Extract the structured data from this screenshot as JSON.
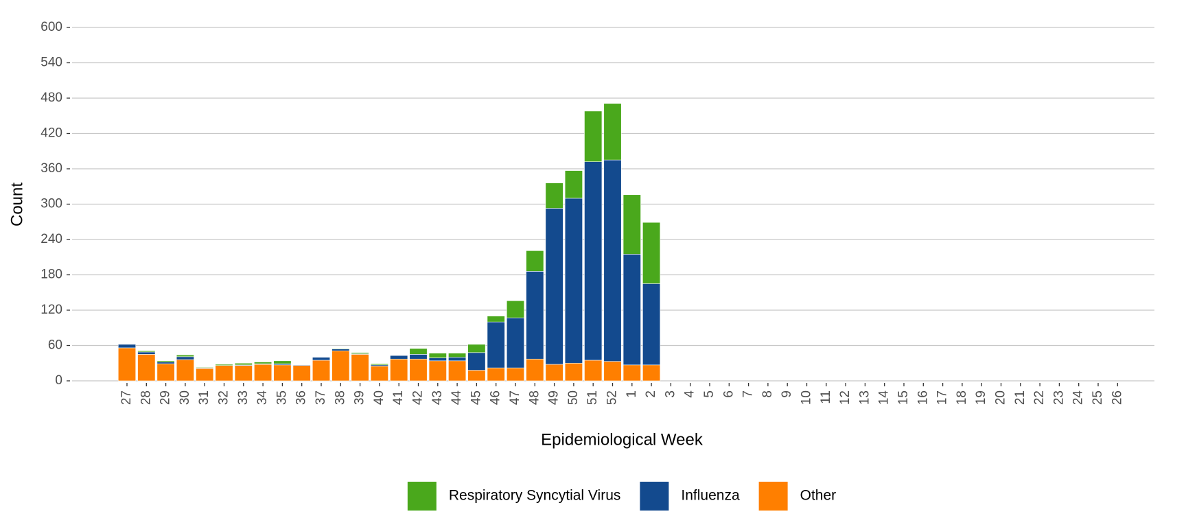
{
  "chart_data": {
    "type": "bar",
    "stacked": true,
    "x_label": "Epidemiological Week",
    "y_label": "Count",
    "categories": [
      "27",
      "28",
      "29",
      "30",
      "31",
      "32",
      "33",
      "34",
      "35",
      "36",
      "37",
      "38",
      "39",
      "40",
      "41",
      "42",
      "43",
      "44",
      "45",
      "46",
      "47",
      "48",
      "49",
      "50",
      "51",
      "52",
      "1",
      "2",
      "3",
      "4",
      "5",
      "6",
      "7",
      "8",
      "9",
      "10",
      "11",
      "12",
      "13",
      "14",
      "15",
      "16",
      "17",
      "18",
      "19",
      "20",
      "21",
      "22",
      "23",
      "24",
      "25",
      "26"
    ],
    "series": [
      {
        "name": "Respiratory Syncytial Virus",
        "color": "#4aa81c",
        "values": [
          0,
          2,
          2,
          3,
          1,
          2,
          3,
          3,
          5,
          0,
          0,
          1,
          2,
          2,
          0,
          10,
          8,
          7,
          14,
          10,
          29,
          35,
          43,
          47,
          86,
          96,
          101,
          104,
          null,
          null,
          null,
          null,
          null,
          null,
          null,
          null,
          null,
          null,
          null,
          null,
          null,
          null,
          null,
          null,
          null,
          null,
          null,
          null,
          null,
          null,
          null,
          null
        ]
      },
      {
        "name": "Influenza",
        "color": "#134a8e",
        "values": [
          6,
          4,
          3,
          5,
          1,
          0,
          1,
          1,
          2,
          1,
          5,
          3,
          1,
          2,
          6,
          8,
          5,
          6,
          30,
          78,
          85,
          149,
          265,
          280,
          337,
          342,
          188,
          138,
          null,
          null,
          null,
          null,
          null,
          null,
          null,
          null,
          null,
          null,
          null,
          null,
          null,
          null,
          null,
          null,
          null,
          null,
          null,
          null,
          null,
          null,
          null,
          null
        ]
      },
      {
        "name": "Other",
        "color": "#ff7f00",
        "values": [
          56,
          45,
          29,
          36,
          21,
          26,
          26,
          28,
          27,
          26,
          35,
          51,
          45,
          25,
          37,
          37,
          34,
          34,
          18,
          22,
          22,
          37,
          28,
          30,
          35,
          33,
          27,
          27,
          null,
          null,
          null,
          null,
          null,
          null,
          null,
          null,
          null,
          null,
          null,
          null,
          null,
          null,
          null,
          null,
          null,
          null,
          null,
          null,
          null,
          null,
          null,
          null
        ]
      }
    ],
    "ylim": [
      0,
      600
    ],
    "yticks": [
      0,
      60,
      120,
      180,
      240,
      300,
      360,
      420,
      480,
      540,
      600
    ],
    "grid": true,
    "legend": "bottom"
  }
}
